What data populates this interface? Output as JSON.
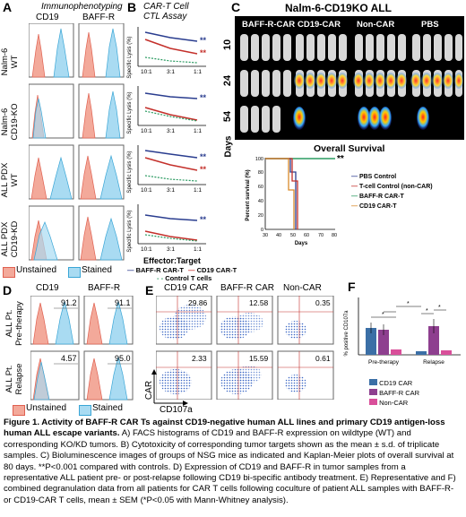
{
  "panelA": {
    "letter": "A",
    "title": "Immunophenotyping",
    "col1": "CD19",
    "col2": "BAFF-R",
    "rows": [
      {
        "l1": "Nalm-6",
        "l2": "WT"
      },
      {
        "l1": "Nalm-6",
        "l2": "CD19-KO"
      },
      {
        "l1": "ALL PDX",
        "l2": "WT"
      },
      {
        "l1": "ALL PDX",
        "l2": "CD19-KD"
      }
    ],
    "legend_unstained": "Unstained",
    "legend_stained": "Stained"
  },
  "panelB": {
    "letter": "B",
    "title1": "CAR-T Cell",
    "title2": "CTL Assay",
    "ylabel": "Specific Lysis (%)",
    "ticks": [
      "10:1",
      "3:1",
      "1:1"
    ],
    "sig": "**",
    "xlabel": "Effector:Target",
    "legend": [
      "BAFF-R CAR-T",
      "CD19 CAR-T",
      "Control T cells"
    ]
  },
  "panelC": {
    "letter": "C",
    "title": "Nalm-6-CD19KO ALL",
    "groups": [
      "BAFF-R-CAR",
      "CD19-CAR",
      "Non-CAR",
      "PBS"
    ],
    "days": [
      "10",
      "24",
      "54"
    ],
    "days_label": "Days",
    "survival_title": "Overall Survival",
    "sig": "**",
    "ylabel": "Percent survival (%)",
    "xlabel": "Days",
    "yticks": [
      "0",
      "20",
      "40",
      "60",
      "80",
      "100"
    ],
    "xticks": [
      "30",
      "40",
      "50",
      "60",
      "70",
      "80"
    ],
    "legend": [
      {
        "label": "PBS Control",
        "color": "#2a3d8f"
      },
      {
        "label": "T-cell Control (non-CAR)",
        "color": "#c4302b"
      },
      {
        "label": "BAFF-R CAR-T",
        "color": "#2c9b62"
      },
      {
        "label": "CD19 CAR-T",
        "color": "#d98a2b"
      }
    ]
  },
  "panelD": {
    "letter": "D",
    "col1": "CD19",
    "col2": "BAFF-R",
    "row1a": "ALL Pt.",
    "row1b": "Pre-therapy",
    "row2a": "ALL Pt.",
    "row2b": "Relapse",
    "v11": "91.2",
    "v12": "91.1",
    "v21": "4.57",
    "v22": "95.0",
    "legend_unstained": "Unstained",
    "legend_stained": "Stained"
  },
  "panelE": {
    "letter": "E",
    "cols": [
      "CD19 CAR",
      "BAFF-R CAR",
      "Non-CAR"
    ],
    "top_values": [
      "29.86",
      "12.58",
      "0.35"
    ],
    "bottom_values": [
      "2.33",
      "15.59",
      "0.61"
    ],
    "ylabel": "CAR",
    "xlabel": "CD107a"
  },
  "panelF": {
    "letter": "F",
    "ylabel": "% positive CD107a",
    "groups": [
      "Pre-therapy",
      "Relapse"
    ],
    "sig": "*",
    "legend": [
      {
        "label": "CD19 CAR",
        "color": "#3b6fa6"
      },
      {
        "label": "BAFF-R CAR",
        "color": "#8e3f8f"
      },
      {
        "label": "Non-CAR",
        "color": "#d94f9a"
      }
    ]
  },
  "caption": {
    "title": "Figure 1. Activity of BAFF-R CAR Ts against CD19-negative human ALL lines and primary CD19 antigen-loss human ALL escape variants.",
    "body": " A) FACS histograms of CD19 and BAFF-R expression on wildtype (WT) and corresponding KO/KD tumors. B) Cytotoxicity of corresponding tumor targets shown as the mean ± s.d. of triplicate samples. C) Bioluminescence images of groups of NSG mice as indicated and Kaplan-Meier plots of overall survival at 80 days. **P<0.001 compared with controls. D) Expression of CD19 and BAFF-R in tumor samples from a representative ALL patient pre- or post-relapse following CD19 bi-specific antibody treatment. E) Representative and F) combined degranulation data from all patients for CAR T cells following coculture of patient ALL samples with BAFF-R- or CD19-CAR T cells, mean ± SEM (*P<0.05 with Mann-Whitney analysis)."
  }
}
